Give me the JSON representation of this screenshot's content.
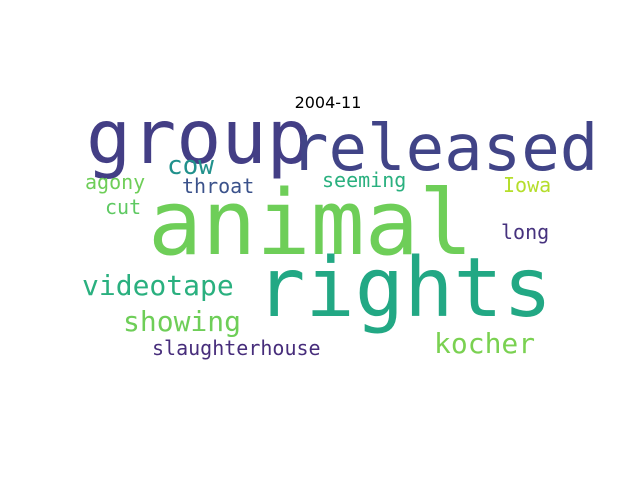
{
  "title": "2004-11",
  "words": [
    {
      "text": "animal",
      "color": "#6ece58"
    },
    {
      "text": "rights",
      "color": "#22a884"
    },
    {
      "text": "group",
      "color": "#433e85"
    },
    {
      "text": "released",
      "color": "#414487"
    },
    {
      "text": "videotape",
      "color": "#2ab07f"
    },
    {
      "text": "showing",
      "color": "#6ece58"
    },
    {
      "text": "kocher",
      "color": "#7ad151"
    },
    {
      "text": "cow",
      "color": "#21918c"
    },
    {
      "text": "throat",
      "color": "#3b528b"
    },
    {
      "text": "seeming",
      "color": "#2ab07f"
    },
    {
      "text": "Iowa",
      "color": "#b5de2b"
    },
    {
      "text": "agony",
      "color": "#6ece58"
    },
    {
      "text": "cut",
      "color": "#5ec962"
    },
    {
      "text": "long",
      "color": "#46327e"
    },
    {
      "text": "slaughterhouse",
      "color": "#472d7b"
    }
  ]
}
